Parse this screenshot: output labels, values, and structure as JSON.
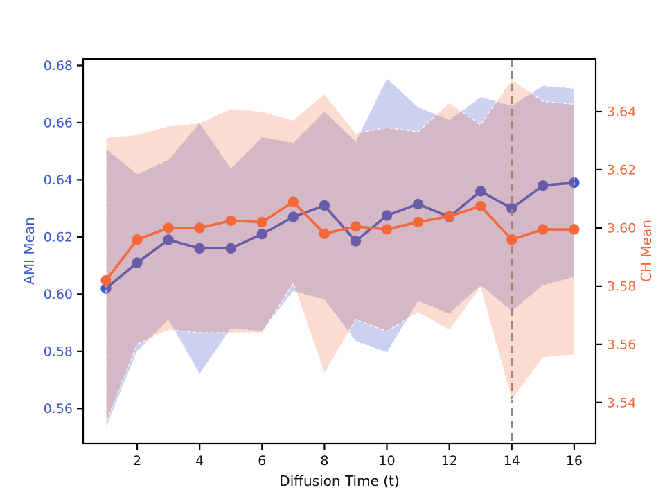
{
  "chart_data": {
    "type": "line",
    "title": "",
    "xlabel": "Diffusion Time (t)",
    "ylabel_left": "AMI Mean",
    "ylabel_right": "CH Mean",
    "x": [
      1,
      2,
      3,
      4,
      5,
      6,
      7,
      8,
      9,
      10,
      11,
      12,
      13,
      14,
      15,
      16
    ],
    "series": [
      {
        "name": "AMI Mean",
        "axis": "left",
        "color": "#3d59cc",
        "band_color": "rgba(61,89,204,0.27)",
        "mean": [
          0.602,
          0.611,
          0.619,
          0.616,
          0.616,
          0.621,
          0.627,
          0.631,
          0.6185,
          0.6275,
          0.6315,
          0.627,
          0.636,
          0.63,
          0.638,
          0.639
        ],
        "std": [
          0.049,
          0.031,
          0.028,
          0.044,
          0.028,
          0.034,
          0.026,
          0.033,
          0.035,
          0.048,
          0.034,
          0.034,
          0.033,
          0.036,
          0.035,
          0.033
        ]
      },
      {
        "name": "CH Mean",
        "axis": "right",
        "color": "#f4683c",
        "band_color": "rgba(244,104,60,0.24)",
        "mean": [
          3.582,
          3.596,
          3.6,
          3.6,
          3.6025,
          3.602,
          3.609,
          3.598,
          3.6005,
          3.5995,
          3.602,
          3.604,
          3.6075,
          3.596,
          3.5995,
          3.5995
        ],
        "std": [
          0.049,
          0.036,
          0.035,
          0.036,
          0.0385,
          0.038,
          0.028,
          0.048,
          0.032,
          0.035,
          0.031,
          0.039,
          0.028,
          0.055,
          0.044,
          0.043
        ]
      }
    ],
    "band_style": {
      "edge_color": "rgba(255,255,255,0.9)",
      "edge_dash": "5 3.5"
    },
    "vline": {
      "x": 14,
      "color": "#8a8a8a",
      "dash": "11 7"
    },
    "xticks": [
      2,
      4,
      6,
      8,
      10,
      12,
      14,
      16
    ],
    "yticks_left": [
      "0.56",
      "0.58",
      "0.60",
      "0.62",
      "0.64",
      "0.66",
      "0.68"
    ],
    "yticks_right": [
      "3.54",
      "3.56",
      "3.58",
      "3.60",
      "3.62",
      "3.64"
    ],
    "xlim": [
      0.268,
      16.69
    ],
    "ylim_left": [
      0.5477,
      0.6823
    ],
    "ylim_right": [
      3.5259,
      3.6581
    ],
    "grid": false,
    "legend": null,
    "tick_color_x": "#111111",
    "spine_color": "#000000"
  }
}
